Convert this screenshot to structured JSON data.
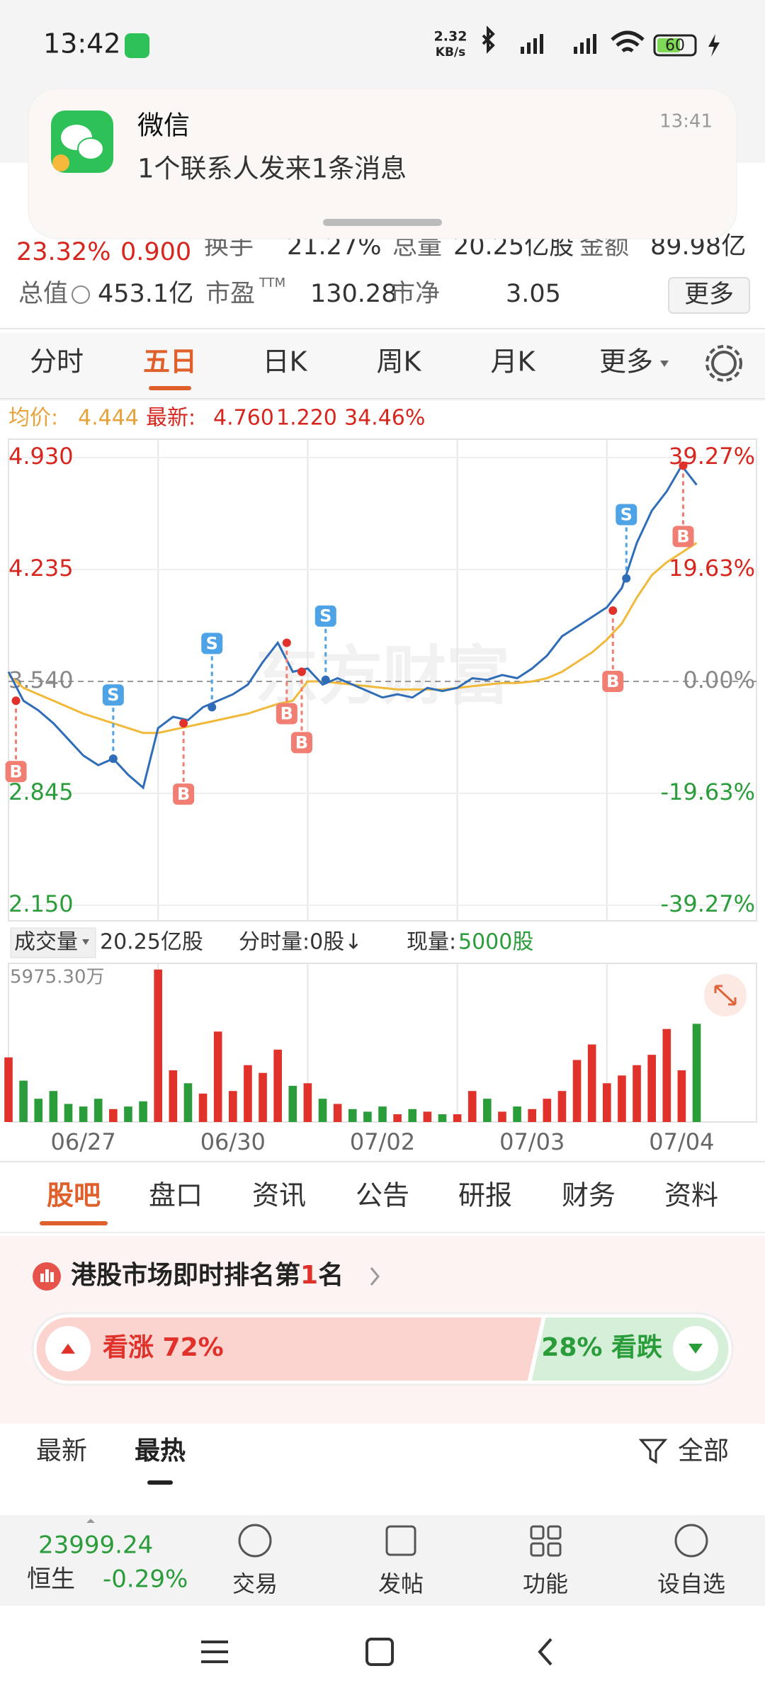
{
  "status_bar": {
    "time": "13:42",
    "speed": "2.32",
    "speed_unit": "KB/s",
    "battery": "60"
  },
  "notification": {
    "app": "微信",
    "message": "1个联系人发来1条消息",
    "time": "13:41"
  },
  "quote": {
    "change_pct": "23.32%",
    "change": "0.900",
    "turnover_label": "换手",
    "turnover": "21.27%",
    "volume_label": "总量",
    "volume": "20.25亿股",
    "amount_label": "金额",
    "amount": "89.98亿",
    "mcap_label": "总值",
    "mcap": "453.1亿",
    "pe_label": "市盈",
    "pe_sup": "TTM",
    "pe": "130.28",
    "pb_label": "市净",
    "pb": "3.05",
    "more": "更多"
  },
  "chart_tabs": {
    "items": [
      "分时",
      "五日",
      "日K",
      "周K",
      "月K",
      "更多"
    ],
    "active": 1
  },
  "info": {
    "avg_label": "均价:",
    "avg": "4.444",
    "last_label": "最新:",
    "last": "4.760",
    "change": "1.220",
    "change_pct": "34.46%"
  },
  "chart_data": {
    "type": "line",
    "watermark": "东方财富",
    "ylim": [
      2.15,
      4.93
    ],
    "yticks": [
      {
        "value": 4.93,
        "label": "4.930"
      },
      4.235,
      {
        "value": 3.54,
        "label": "3.540"
      },
      2.845,
      {
        "value": 2.15,
        "label": "2.150"
      }
    ],
    "y2lim": [
      -39.27,
      39.27
    ],
    "y2ticks": [
      {
        "value": 39.27,
        "label": "39.27%"
      },
      {
        "value": 19.63,
        "label": "19.63%"
      },
      {
        "value": 0,
        "label": "0.00%"
      },
      {
        "value": -19.63,
        "label": "-19.63%"
      },
      {
        "value": -39.27,
        "label": "-39.27%"
      }
    ],
    "colors": {
      "price": "#2f6db8",
      "avg": "#f0b93a",
      "up": "#e0312b",
      "down": "#2a9d3a",
      "buy": "#f07e72",
      "sell": "#4ea3e6"
    },
    "days": [
      {
        "label": "06/27",
        "price": [
          3.6,
          3.42,
          3.36,
          3.28,
          3.18,
          3.08,
          3.02,
          3.06,
          2.96,
          2.88
        ],
        "avg": [
          3.58,
          3.5,
          3.46,
          3.42,
          3.38,
          3.34,
          3.31,
          3.28,
          3.25,
          3.22
        ],
        "volume": [
          2500,
          1600,
          900,
          1200,
          700,
          600,
          900,
          500,
          600,
          800
        ]
      },
      {
        "label": "06/30",
        "price": [
          3.25,
          3.32,
          3.3,
          3.38,
          3.42,
          3.46,
          3.52,
          3.66,
          3.78,
          3.6
        ],
        "avg": [
          3.22,
          3.24,
          3.26,
          3.28,
          3.3,
          3.32,
          3.34,
          3.37,
          3.4,
          3.42
        ],
        "volume": [
          5900,
          2000,
          1500,
          1100,
          3500,
          1200,
          2200,
          1900,
          2800,
          1400
        ]
      },
      {
        "label": "07/02",
        "price": [
          3.62,
          3.52,
          3.56,
          3.52,
          3.48,
          3.44,
          3.46,
          3.44,
          3.5,
          3.48
        ],
        "avg": [
          3.54,
          3.54,
          3.53,
          3.52,
          3.51,
          3.5,
          3.49,
          3.49,
          3.49,
          3.49
        ],
        "volume": [
          1500,
          900,
          700,
          500,
          400,
          600,
          300,
          500,
          400,
          300
        ]
      },
      {
        "label": "07/03",
        "price": [
          3.5,
          3.56,
          3.55,
          3.58,
          3.56,
          3.62,
          3.7,
          3.82,
          3.88,
          3.94
        ],
        "avg": [
          3.5,
          3.51,
          3.52,
          3.53,
          3.53,
          3.54,
          3.56,
          3.6,
          3.66,
          3.72
        ],
        "volume": [
          300,
          1200,
          900,
          400,
          600,
          500,
          900,
          1200,
          2400,
          3000
        ]
      },
      {
        "label": "07/04",
        "price": [
          4.0,
          4.12,
          4.4,
          4.6,
          4.72,
          4.88,
          4.76
        ],
        "avg": [
          3.8,
          3.9,
          4.06,
          4.2,
          4.28,
          4.34,
          4.4
        ],
        "volume": [
          1500,
          1800,
          2200,
          2600,
          3600,
          2000,
          3800
        ]
      }
    ],
    "markers": [
      {
        "label": "B",
        "x": 0.05,
        "value": 3.42
      },
      {
        "label": "S",
        "x": 0.7,
        "value": 3.06
      },
      {
        "label": "B",
        "x": 1.17,
        "value": 3.28
      },
      {
        "label": "S",
        "x": 1.36,
        "value": 3.38
      },
      {
        "label": "B",
        "x": 1.86,
        "value": 3.78
      },
      {
        "label": "B",
        "x": 1.96,
        "value": 3.6
      },
      {
        "label": "S",
        "x": 2.12,
        "value": 3.55
      },
      {
        "label": "B",
        "x": 4.04,
        "value": 3.98
      },
      {
        "label": "S",
        "x": 4.13,
        "value": 4.18
      },
      {
        "label": "B",
        "x": 4.51,
        "value": 4.88
      }
    ],
    "volume_max": {
      "value": 5975.3,
      "label": "5975.30万"
    }
  },
  "volume_header": {
    "label": "成交量",
    "total": "20.25亿股",
    "tick_volume": "分时量:0股↓",
    "current_label": "现量:",
    "current": "5000股"
  },
  "section_tabs": {
    "items": [
      "股吧",
      "盘口",
      "资讯",
      "公告",
      "研报",
      "财务",
      "资料"
    ],
    "active": 0
  },
  "ranking": {
    "prefix": "港股市场即时排名第",
    "rank": "1",
    "suffix": "名"
  },
  "sentiment": {
    "up": {
      "value": 72,
      "label": "看涨 72%"
    },
    "down": {
      "value": 28,
      "label": "28% 看跌"
    }
  },
  "feed_tabs": {
    "items": [
      "最新",
      "最热"
    ],
    "active": 1,
    "filter": "全部"
  },
  "bottom_bar": {
    "index_value": "23999.24",
    "index_name": "恒生",
    "index_change": "-0.29%",
    "items": [
      "交易",
      "发帖",
      "功能",
      "设自选"
    ]
  }
}
